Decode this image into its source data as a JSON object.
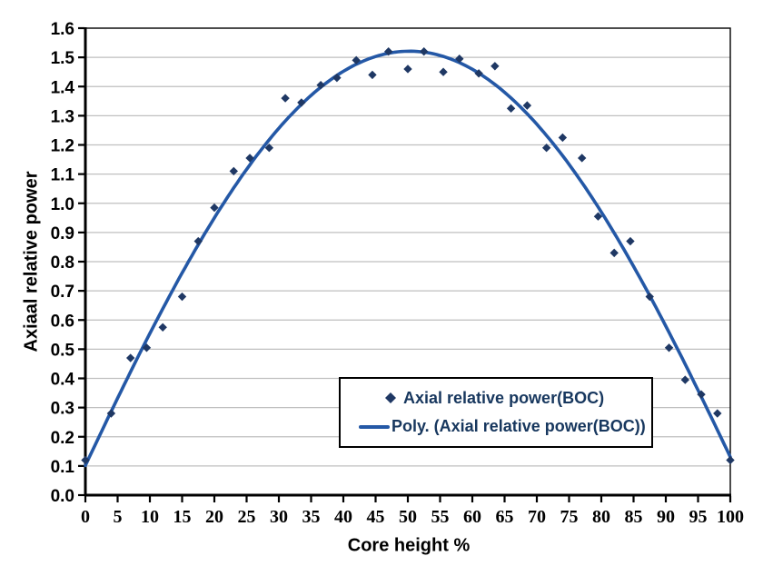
{
  "chart_data": {
    "type": "scatter",
    "title": "",
    "xlabel": "Core height %",
    "ylabel": "Axiaal relative power",
    "xlim": [
      0,
      100
    ],
    "ylim": [
      0,
      1.6
    ],
    "grid": "horizontal-gridlines-on",
    "legend_position": "inside-bottom-right",
    "x_ticks": [
      0,
      5,
      10,
      15,
      20,
      25,
      30,
      35,
      40,
      45,
      50,
      55,
      60,
      65,
      70,
      75,
      80,
      85,
      90,
      95,
      100
    ],
    "y_ticks": [
      0,
      0.1,
      0.2,
      0.3,
      0.4,
      0.5,
      0.6,
      0.7,
      0.8,
      0.9,
      1.0,
      1.1,
      1.2,
      1.3,
      1.4,
      1.5,
      1.6
    ],
    "y_tick_labels": [
      "0.0",
      "0.1",
      "0.2",
      "0.3",
      "0.4",
      "0.5",
      "0.6",
      "0.7",
      "0.8",
      "0.9",
      "1.0",
      "1.1",
      "1.2",
      "1.3",
      "1.4",
      "1.5",
      "1.6"
    ],
    "series": [
      {
        "name": "Axial relative power(BOC)",
        "kind": "scatter",
        "marker": "diamond",
        "color": "#1F3864",
        "points": [
          [
            0,
            0.12
          ],
          [
            4,
            0.28
          ],
          [
            7,
            0.47
          ],
          [
            9.5,
            0.505
          ],
          [
            12,
            0.575
          ],
          [
            15,
            0.68
          ],
          [
            17.5,
            0.87
          ],
          [
            20,
            0.985
          ],
          [
            23,
            1.11
          ],
          [
            25.5,
            1.155
          ],
          [
            28.5,
            1.19
          ],
          [
            31,
            1.36
          ],
          [
            33.5,
            1.345
          ],
          [
            36.5,
            1.405
          ],
          [
            39,
            1.43
          ],
          [
            42,
            1.49
          ],
          [
            44.5,
            1.44
          ],
          [
            47,
            1.52
          ],
          [
            50,
            1.46
          ],
          [
            52.5,
            1.52
          ],
          [
            55.5,
            1.45
          ],
          [
            58,
            1.495
          ],
          [
            61,
            1.445
          ],
          [
            63.5,
            1.47
          ],
          [
            66,
            1.325
          ],
          [
            68.5,
            1.335
          ],
          [
            71.5,
            1.19
          ],
          [
            74,
            1.225
          ],
          [
            77,
            1.155
          ],
          [
            79.5,
            0.955
          ],
          [
            82,
            0.83
          ],
          [
            84.5,
            0.87
          ],
          [
            87.5,
            0.68
          ],
          [
            90.5,
            0.505
          ],
          [
            93,
            0.395
          ],
          [
            95.5,
            0.345
          ],
          [
            98,
            0.28
          ],
          [
            100,
            0.12
          ]
        ]
      },
      {
        "name": "Poly. (Axial relative power(BOC))",
        "kind": "polynomial-trendline",
        "degree": 4,
        "color": "#2458A6"
      }
    ],
    "colors": {
      "background": "#FFFFFF",
      "gridline": "#BFBFBF",
      "axis": "#000000",
      "tick_text": "#000000",
      "legend_text": "#17375E",
      "legend_border": "#000000"
    }
  }
}
